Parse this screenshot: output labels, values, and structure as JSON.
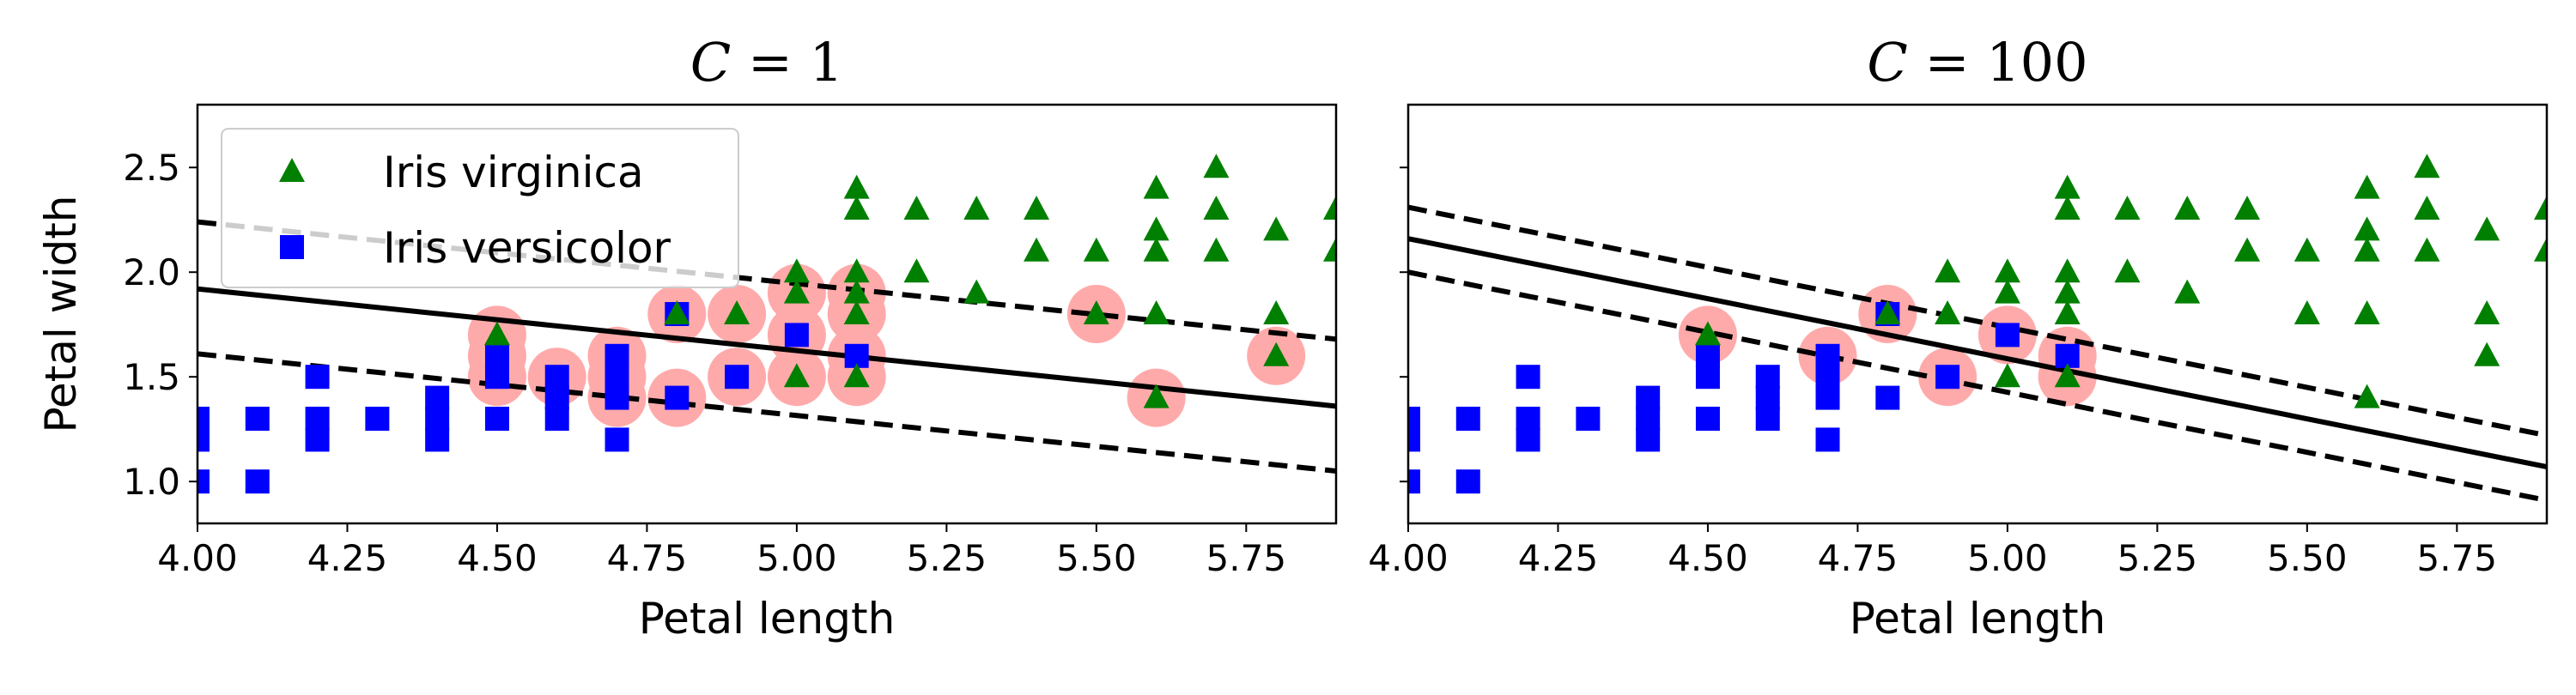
{
  "colors": {
    "virginica": "#008000",
    "versicolor": "#0000ff",
    "support_vector": "#ffaaaa",
    "boundary": "#000000"
  },
  "chart_data": [
    {
      "type": "scatter",
      "title": "C = 1",
      "title_var": "C",
      "title_rest": " = 1",
      "xlabel": "Petal length",
      "ylabel": "Petal width",
      "xlim": [
        4.0,
        5.9
      ],
      "ylim": [
        0.8,
        2.8
      ],
      "xticks": [
        "4.00",
        "4.25",
        "4.50",
        "4.75",
        "5.00",
        "5.25",
        "5.50",
        "5.75"
      ],
      "yticks": [
        "1.0",
        "1.5",
        "2.0",
        "2.5"
      ],
      "show_yticklabels": true,
      "legend": {
        "position": "top-left",
        "entries": [
          "Iris virginica",
          "Iris versicolor"
        ]
      },
      "decision_boundary": {
        "x": [
          4.0,
          5.9
        ],
        "y": [
          1.92,
          1.36
        ]
      },
      "margin_upper": {
        "x": [
          4.0,
          5.9
        ],
        "y": [
          2.24,
          1.68
        ]
      },
      "margin_lower": {
        "x": [
          4.0,
          5.9
        ],
        "y": [
          1.61,
          1.05
        ]
      },
      "support_vectors": [
        [
          4.5,
          1.5
        ],
        [
          4.5,
          1.6
        ],
        [
          4.5,
          1.7
        ],
        [
          4.6,
          1.5
        ],
        [
          4.7,
          1.4
        ],
        [
          4.7,
          1.5
        ],
        [
          4.7,
          1.6
        ],
        [
          4.8,
          1.4
        ],
        [
          4.8,
          1.8
        ],
        [
          4.9,
          1.5
        ],
        [
          4.9,
          1.8
        ],
        [
          5.0,
          1.5
        ],
        [
          5.0,
          1.7
        ],
        [
          5.0,
          1.9
        ],
        [
          5.1,
          1.5
        ],
        [
          5.1,
          1.6
        ],
        [
          5.1,
          1.8
        ],
        [
          5.1,
          1.9
        ],
        [
          5.5,
          1.8
        ],
        [
          5.6,
          1.4
        ],
        [
          5.8,
          1.6
        ]
      ],
      "versicolor_points": [
        [
          4.0,
          1.0
        ],
        [
          4.0,
          1.2
        ],
        [
          4.0,
          1.3
        ],
        [
          4.1,
          1.0
        ],
        [
          4.1,
          1.3
        ],
        [
          4.2,
          1.2
        ],
        [
          4.2,
          1.3
        ],
        [
          4.2,
          1.5
        ],
        [
          4.3,
          1.3
        ],
        [
          4.4,
          1.2
        ],
        [
          4.4,
          1.3
        ],
        [
          4.4,
          1.4
        ],
        [
          4.5,
          1.3
        ],
        [
          4.5,
          1.5
        ],
        [
          4.5,
          1.6
        ],
        [
          4.6,
          1.3
        ],
        [
          4.6,
          1.4
        ],
        [
          4.6,
          1.5
        ],
        [
          4.7,
          1.2
        ],
        [
          4.7,
          1.4
        ],
        [
          4.7,
          1.5
        ],
        [
          4.7,
          1.6
        ],
        [
          4.8,
          1.4
        ],
        [
          4.8,
          1.8
        ],
        [
          4.9,
          1.5
        ],
        [
          5.0,
          1.7
        ],
        [
          5.1,
          1.6
        ]
      ],
      "virginica_points": [
        [
          4.5,
          1.7
        ],
        [
          4.8,
          1.8
        ],
        [
          4.9,
          1.8
        ],
        [
          5.0,
          1.5
        ],
        [
          5.0,
          1.9
        ],
        [
          5.0,
          2.0
        ],
        [
          5.1,
          1.5
        ],
        [
          5.1,
          1.8
        ],
        [
          5.1,
          1.9
        ],
        [
          5.1,
          2.0
        ],
        [
          5.1,
          2.3
        ],
        [
          5.1,
          2.4
        ],
        [
          5.2,
          2.0
        ],
        [
          5.2,
          2.3
        ],
        [
          5.3,
          1.9
        ],
        [
          5.3,
          2.3
        ],
        [
          5.4,
          2.1
        ],
        [
          5.4,
          2.3
        ],
        [
          5.5,
          1.8
        ],
        [
          5.5,
          2.1
        ],
        [
          5.6,
          1.4
        ],
        [
          5.6,
          1.8
        ],
        [
          5.6,
          2.1
        ],
        [
          5.6,
          2.2
        ],
        [
          5.6,
          2.4
        ],
        [
          5.7,
          2.1
        ],
        [
          5.7,
          2.3
        ],
        [
          5.7,
          2.5
        ],
        [
          5.8,
          1.6
        ],
        [
          5.8,
          1.8
        ],
        [
          5.8,
          2.2
        ],
        [
          5.9,
          2.1
        ],
        [
          5.9,
          2.3
        ]
      ]
    },
    {
      "type": "scatter",
      "title": "C = 100",
      "title_var": "C",
      "title_rest": " = 100",
      "xlabel": "Petal length",
      "ylabel": "",
      "xlim": [
        4.0,
        5.9
      ],
      "ylim": [
        0.8,
        2.8
      ],
      "xticks": [
        "4.00",
        "4.25",
        "4.50",
        "4.75",
        "5.00",
        "5.25",
        "5.50",
        "5.75"
      ],
      "yticks": [
        "1.0",
        "1.5",
        "2.0",
        "2.5"
      ],
      "show_yticklabels": false,
      "legend": null,
      "decision_boundary": {
        "x": [
          4.0,
          5.9
        ],
        "y": [
          2.16,
          1.07
        ]
      },
      "margin_upper": {
        "x": [
          4.0,
          5.9
        ],
        "y": [
          2.31,
          1.22
        ]
      },
      "margin_lower": {
        "x": [
          4.0,
          5.9
        ],
        "y": [
          2.0,
          0.91
        ]
      },
      "support_vectors": [
        [
          4.5,
          1.7
        ],
        [
          4.7,
          1.6
        ],
        [
          4.8,
          1.8
        ],
        [
          4.9,
          1.5
        ],
        [
          5.0,
          1.7
        ],
        [
          5.1,
          1.6
        ],
        [
          5.1,
          1.5
        ]
      ],
      "versicolor_points": [
        [
          4.0,
          1.0
        ],
        [
          4.0,
          1.2
        ],
        [
          4.0,
          1.3
        ],
        [
          4.1,
          1.0
        ],
        [
          4.1,
          1.3
        ],
        [
          4.2,
          1.2
        ],
        [
          4.2,
          1.3
        ],
        [
          4.2,
          1.5
        ],
        [
          4.3,
          1.3
        ],
        [
          4.4,
          1.2
        ],
        [
          4.4,
          1.3
        ],
        [
          4.4,
          1.4
        ],
        [
          4.5,
          1.3
        ],
        [
          4.5,
          1.5
        ],
        [
          4.5,
          1.6
        ],
        [
          4.6,
          1.3
        ],
        [
          4.6,
          1.4
        ],
        [
          4.6,
          1.5
        ],
        [
          4.7,
          1.2
        ],
        [
          4.7,
          1.4
        ],
        [
          4.7,
          1.5
        ],
        [
          4.7,
          1.6
        ],
        [
          4.8,
          1.4
        ],
        [
          4.8,
          1.8
        ],
        [
          4.9,
          1.5
        ],
        [
          5.0,
          1.7
        ],
        [
          5.1,
          1.6
        ]
      ],
      "virginica_points": [
        [
          4.5,
          1.7
        ],
        [
          4.8,
          1.8
        ],
        [
          4.9,
          1.8
        ],
        [
          4.9,
          2.0
        ],
        [
          5.0,
          1.5
        ],
        [
          5.0,
          1.9
        ],
        [
          5.0,
          2.0
        ],
        [
          5.1,
          1.5
        ],
        [
          5.1,
          1.8
        ],
        [
          5.1,
          1.9
        ],
        [
          5.1,
          2.0
        ],
        [
          5.1,
          2.3
        ],
        [
          5.1,
          2.4
        ],
        [
          5.2,
          2.0
        ],
        [
          5.2,
          2.3
        ],
        [
          5.3,
          1.9
        ],
        [
          5.3,
          2.3
        ],
        [
          5.4,
          2.1
        ],
        [
          5.4,
          2.3
        ],
        [
          5.5,
          1.8
        ],
        [
          5.5,
          2.1
        ],
        [
          5.6,
          1.4
        ],
        [
          5.6,
          1.8
        ],
        [
          5.6,
          2.1
        ],
        [
          5.6,
          2.2
        ],
        [
          5.6,
          2.4
        ],
        [
          5.7,
          2.1
        ],
        [
          5.7,
          2.3
        ],
        [
          5.7,
          2.5
        ],
        [
          5.8,
          1.6
        ],
        [
          5.8,
          1.8
        ],
        [
          5.8,
          2.2
        ],
        [
          5.9,
          2.1
        ],
        [
          5.9,
          2.3
        ]
      ]
    }
  ]
}
